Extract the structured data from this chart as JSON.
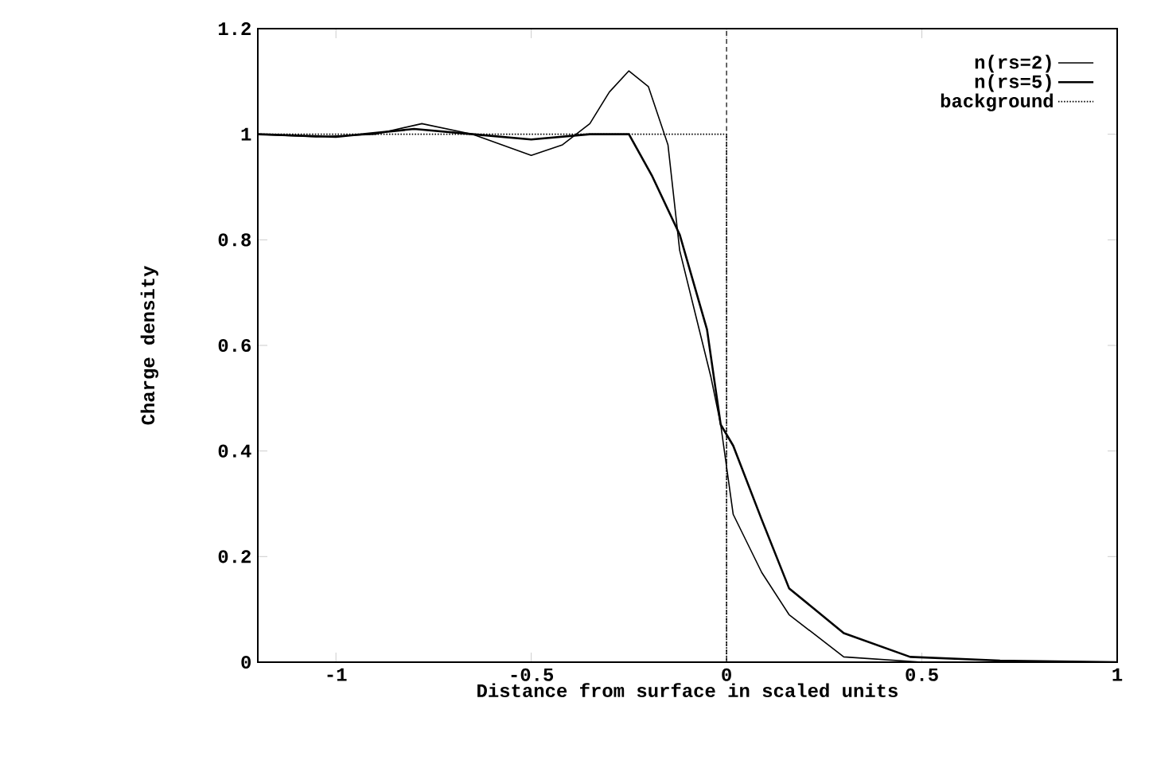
{
  "chart_data": {
    "type": "line",
    "xlabel": "Distance from surface in scaled units",
    "ylabel": "Charge density",
    "xlim": [
      -1.2,
      1
    ],
    "ylim": [
      0,
      1.2
    ],
    "xticks": [
      -1,
      -0.5,
      0,
      0.5,
      1
    ],
    "yticks": [
      0,
      0.2,
      0.4,
      0.6,
      0.8,
      1,
      1.2
    ],
    "grid": false,
    "legend": "top right",
    "marker": "none",
    "series": [
      {
        "name": "n(rs=2)",
        "color": "#000000",
        "line_style": "solid",
        "x": [
          -1.2,
          -1.05,
          -0.9,
          -0.78,
          -0.65,
          -0.5,
          -0.42,
          -0.35,
          -0.3,
          -0.25,
          -0.2,
          -0.15,
          -0.12,
          -0.08,
          -0.04,
          -0.015,
          0.017,
          0.09,
          0.16,
          0.3,
          0.5,
          0.7,
          1
        ],
        "values": [
          1.0,
          0.995,
          1.0,
          1.02,
          1.0,
          0.96,
          0.98,
          1.02,
          1.08,
          1.12,
          1.09,
          0.98,
          0.78,
          0.66,
          0.54,
          0.45,
          0.28,
          0.17,
          0.09,
          0.01,
          0.0,
          0.0,
          0.0
        ]
      },
      {
        "name": "n(rs=5)",
        "color": "#000000",
        "line_style": "solid",
        "x": [
          -1.2,
          -1.0,
          -0.8,
          -0.65,
          -0.5,
          -0.35,
          -0.25,
          -0.19,
          -0.12,
          -0.05,
          -0.015,
          0.017,
          0.09,
          0.16,
          0.3,
          0.47,
          0.7,
          1
        ],
        "values": [
          1.0,
          0.995,
          1.01,
          1.0,
          0.99,
          1.0,
          1.0,
          0.92,
          0.81,
          0.63,
          0.45,
          0.41,
          0.27,
          0.14,
          0.055,
          0.01,
          0.003,
          0.0
        ]
      },
      {
        "name": "background",
        "color": "#000000",
        "line_style": "dotted",
        "x": [
          -1.2,
          0,
          0,
          1
        ],
        "values": [
          1,
          1,
          0,
          0
        ]
      }
    ],
    "ref_lines": [
      {
        "axis": "x",
        "value": 0,
        "color": "#000000",
        "line_style": "dashed"
      }
    ]
  }
}
